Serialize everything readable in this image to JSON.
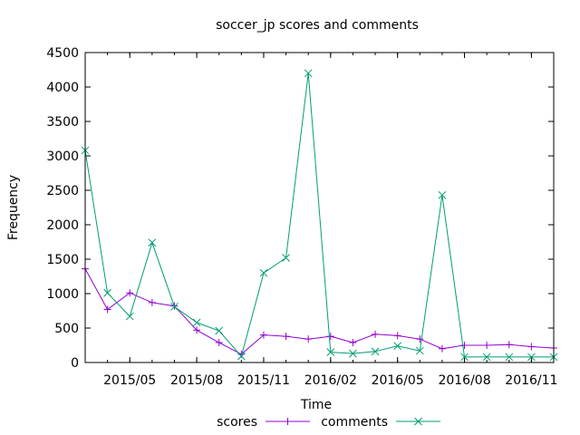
{
  "chart_data": {
    "type": "line",
    "title": "soccer_jp scores and comments",
    "xlabel": "Time",
    "ylabel": "Frequency",
    "ylim": [
      0,
      4500
    ],
    "yticks": [
      0,
      500,
      1000,
      1500,
      2000,
      2500,
      3000,
      3500,
      4000,
      4500
    ],
    "xlim": [
      "2015-03",
      "2016-12"
    ],
    "xticks": [
      "2015/05",
      "2015/08",
      "2015/11",
      "2016/02",
      "2016/05",
      "2016/08",
      "2016/11"
    ],
    "xtick_months": [
      "2015-05",
      "2015-08",
      "2015-11",
      "2016-02",
      "2016-05",
      "2016-08",
      "2016-11"
    ],
    "x": [
      "2015-03",
      "2015-04",
      "2015-05",
      "2015-06",
      "2015-07",
      "2015-08",
      "2015-09",
      "2015-10",
      "2015-11",
      "2015-12",
      "2016-01",
      "2016-02",
      "2016-03",
      "2016-04",
      "2016-05",
      "2016-06",
      "2016-07",
      "2016-08",
      "2016-09",
      "2016-10",
      "2016-11",
      "2016-12"
    ],
    "legend_position": "bottom",
    "series": [
      {
        "name": "scores",
        "color": "#9400d3",
        "marker": "+",
        "values": [
          1360,
          770,
          1010,
          870,
          820,
          470,
          290,
          120,
          400,
          380,
          340,
          380,
          290,
          410,
          390,
          340,
          200,
          250,
          250,
          260,
          230,
          210
        ]
      },
      {
        "name": "comments",
        "color": "#009e73",
        "marker": "x",
        "values": [
          3080,
          1010,
          670,
          1740,
          810,
          580,
          460,
          90,
          1300,
          1520,
          4200,
          150,
          130,
          160,
          240,
          170,
          2430,
          80,
          80,
          80,
          80,
          80
        ]
      }
    ]
  }
}
